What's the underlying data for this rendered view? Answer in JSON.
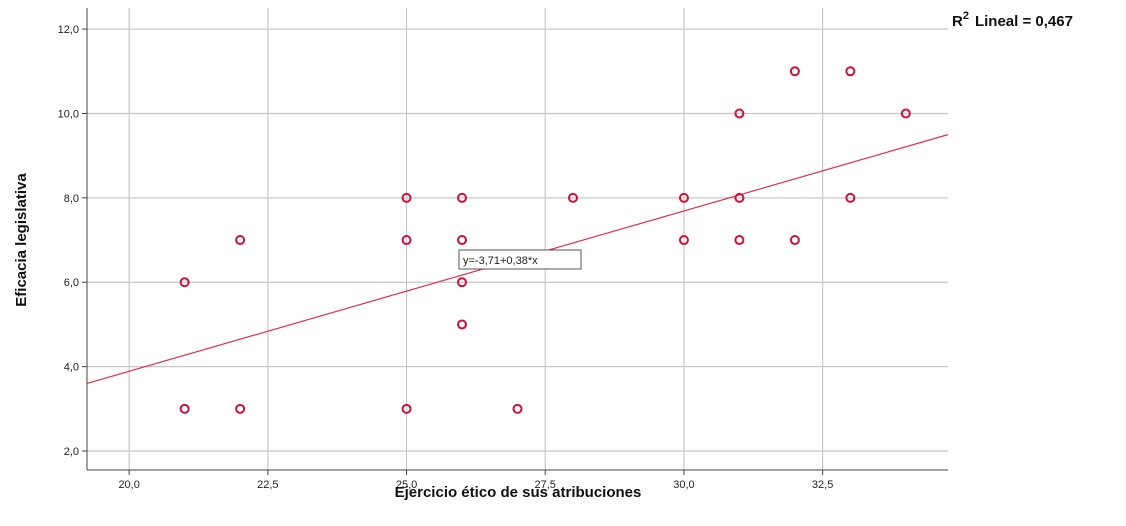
{
  "chart_data": {
    "type": "scatter",
    "title": "",
    "xlabel": "Ejercicio ético de sus atribuciones",
    "ylabel": "Eficacia legislativa",
    "xlim": [
      19.24,
      34.76
    ],
    "ylim": [
      1.55,
      12.5
    ],
    "xticks": [
      20.0,
      22.5,
      25.0,
      27.5,
      30.0,
      32.5
    ],
    "xtick_labels": [
      "20,0",
      "22,5",
      "25,0",
      "27,5",
      "30,0",
      "32,5"
    ],
    "yticks": [
      2.0,
      4.0,
      6.0,
      8.0,
      10.0,
      12.0
    ],
    "ytick_labels": [
      "2,0",
      "4,0",
      "6,0",
      "8,0",
      "10,0",
      "12,0"
    ],
    "grid": true,
    "points": [
      {
        "x": 21,
        "y": 6
      },
      {
        "x": 21,
        "y": 3
      },
      {
        "x": 22,
        "y": 7
      },
      {
        "x": 22,
        "y": 3
      },
      {
        "x": 25,
        "y": 8
      },
      {
        "x": 25,
        "y": 7
      },
      {
        "x": 25,
        "y": 3
      },
      {
        "x": 26,
        "y": 8
      },
      {
        "x": 26,
        "y": 7
      },
      {
        "x": 26,
        "y": 6
      },
      {
        "x": 26,
        "y": 5
      },
      {
        "x": 27,
        "y": 3
      },
      {
        "x": 28,
        "y": 8
      },
      {
        "x": 30,
        "y": 8
      },
      {
        "x": 30,
        "y": 7
      },
      {
        "x": 31,
        "y": 10
      },
      {
        "x": 31,
        "y": 8
      },
      {
        "x": 31,
        "y": 7
      },
      {
        "x": 32,
        "y": 11
      },
      {
        "x": 32,
        "y": 7
      },
      {
        "x": 33,
        "y": 11
      },
      {
        "x": 33,
        "y": 8
      },
      {
        "x": 34,
        "y": 10
      }
    ],
    "fit_line": {
      "intercept": -3.71,
      "slope": 0.38,
      "label": "y=-3,71+0,38*x"
    },
    "r2_label": "Lineal = 0,467",
    "r2_prefix": "R",
    "r2_sup": "2",
    "colors": {
      "points": "#d0103a",
      "fit": "#e0304a",
      "grid": "#c8c8c8",
      "axis": "#444444"
    }
  }
}
